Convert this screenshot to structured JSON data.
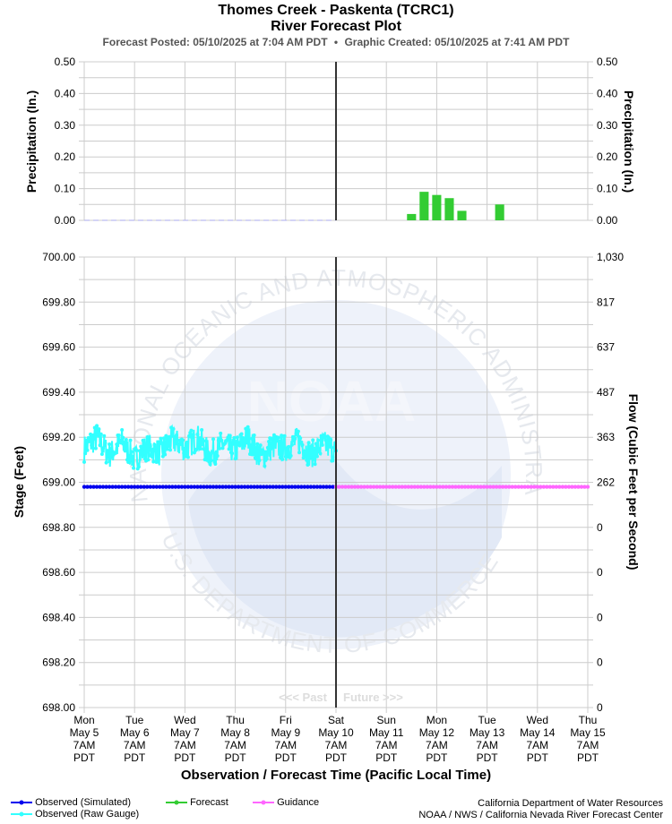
{
  "header": {
    "title_line1": "Thomes Creek - Paskenta (TCRC1)",
    "title_line2": "River Forecast Plot",
    "forecast_posted": "Forecast Posted: 05/10/2025 at 7:04 AM PDT",
    "separator": "•",
    "graphic_created": "Graphic Created: 05/10/2025 at 7:41 AM PDT"
  },
  "precip_panel": {
    "ylabel_left": "Precipitation (In.)",
    "ylabel_right": "Precipitation (In.)",
    "ticks": [
      "0.00",
      "0.10",
      "0.20",
      "0.30",
      "0.40",
      "0.50"
    ]
  },
  "stage_panel": {
    "ylabel_left": "Stage (Feet)",
    "ylabel_right": "Flow (Cubic Feet per Second)",
    "left_ticks": [
      "698.00",
      "698.20",
      "698.40",
      "698.60",
      "698.80",
      "699.00",
      "699.20",
      "699.40",
      "699.60",
      "699.80",
      "700.00"
    ],
    "right_ticks": [
      "0",
      "0",
      "0",
      "0",
      "0",
      "262",
      "363",
      "487",
      "637",
      "817",
      "1,030"
    ],
    "past_label": "<<< Past",
    "future_label": "Future >>>"
  },
  "x_axis": {
    "title": "Observation / Forecast Time (Pacific Local Time)",
    "ticks": [
      {
        "day": "Mon",
        "date": "May 5",
        "time": "7AM",
        "tz": "PDT"
      },
      {
        "day": "Tue",
        "date": "May 6",
        "time": "7AM",
        "tz": "PDT"
      },
      {
        "day": "Wed",
        "date": "May 7",
        "time": "7AM",
        "tz": "PDT"
      },
      {
        "day": "Thu",
        "date": "May 8",
        "time": "7AM",
        "tz": "PDT"
      },
      {
        "day": "Fri",
        "date": "May 9",
        "time": "7AM",
        "tz": "PDT"
      },
      {
        "day": "Sat",
        "date": "May 10",
        "time": "7AM",
        "tz": "PDT"
      },
      {
        "day": "Sun",
        "date": "May 11",
        "time": "7AM",
        "tz": "PDT"
      },
      {
        "day": "Mon",
        "date": "May 12",
        "time": "7AM",
        "tz": "PDT"
      },
      {
        "day": "Tue",
        "date": "May 13",
        "time": "7AM",
        "tz": "PDT"
      },
      {
        "day": "Wed",
        "date": "May 14",
        "time": "7AM",
        "tz": "PDT"
      },
      {
        "day": "Thu",
        "date": "May 15",
        "time": "7AM",
        "tz": "PDT"
      }
    ]
  },
  "legend": {
    "observed_simulated": "Observed (Simulated)",
    "observed_raw": "Observed (Raw Gauge)",
    "forecast": "Forecast",
    "guidance": "Guidance"
  },
  "credits": {
    "line1": "California Department of Water Resources",
    "line2": "NOAA / NWS / California Nevada River Forecast Center"
  },
  "watermark": {
    "logo_text": "NOAA",
    "ring_text": "NATIONAL OCEANIC AND ATMOSPHERIC ADMINISTRATION",
    "ring_text_bottom": "U.S. DEPARTMENT OF COMMERCE"
  },
  "colors": {
    "observed_simulated": "#0000ee",
    "observed_raw": "#33ffff",
    "forecast": "#33cc33",
    "guidance": "#ff66ff",
    "now_line": "#333333",
    "grid": "#cccccc"
  },
  "chart_data": [
    {
      "type": "bar",
      "panel": "precipitation",
      "x_unit": "days after Mon May 5 7AM PDT",
      "bars": [
        {
          "x": 6.5,
          "value": 0.02
        },
        {
          "x": 6.75,
          "value": 0.09
        },
        {
          "x": 7.0,
          "value": 0.08
        },
        {
          "x": 7.25,
          "value": 0.07
        },
        {
          "x": 7.5,
          "value": 0.03
        },
        {
          "x": 8.25,
          "value": 0.05
        }
      ],
      "observed_precip_value": 0.0,
      "ylim": [
        0,
        0.5
      ],
      "xlim": [
        0,
        10
      ],
      "grid": true
    },
    {
      "type": "line",
      "panel": "stage",
      "x_unit": "days after Mon May 5 7AM PDT",
      "ylim": [
        698.0,
        700.0
      ],
      "xlim": [
        0,
        10
      ],
      "now": 5,
      "grid": true,
      "series": [
        {
          "name": "Observed (Raw Gauge)",
          "x": [
            0.0,
            0.25,
            0.5,
            0.75,
            1.0,
            1.25,
            1.5,
            1.75,
            2.0,
            2.25,
            2.5,
            2.75,
            3.0,
            3.25,
            3.5,
            3.75,
            4.0,
            4.25,
            4.5,
            4.75,
            5.0
          ],
          "values": [
            699.15,
            699.2,
            699.12,
            699.18,
            699.1,
            699.16,
            699.13,
            699.19,
            699.15,
            699.2,
            699.12,
            699.17,
            699.14,
            699.2,
            699.11,
            699.16,
            699.15,
            699.19,
            699.12,
            699.17,
            699.14
          ],
          "band": [
            699.06,
            699.26
          ]
        },
        {
          "name": "Observed (Simulated)",
          "x": [
            0,
            5
          ],
          "values": [
            698.98,
            698.98
          ]
        },
        {
          "name": "Guidance",
          "x": [
            5,
            10
          ],
          "values": [
            698.98,
            698.98
          ]
        }
      ]
    }
  ]
}
